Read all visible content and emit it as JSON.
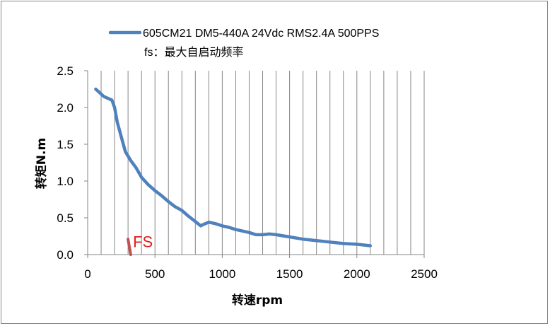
{
  "chart_data": {
    "type": "line",
    "title": "",
    "xlabel": "转速rpm",
    "ylabel": "转矩N.m",
    "xlim": [
      0,
      2500
    ],
    "ylim": [
      0,
      2.5
    ],
    "x_ticks": [
      "0",
      "500",
      "1000",
      "1500",
      "2000",
      "2500"
    ],
    "y_ticks": [
      "0.0",
      "0.5",
      "1.0",
      "1.5",
      "2.0",
      "2.5"
    ],
    "grid": "vertical",
    "legend": "top",
    "series": [
      {
        "name": "605CM21 DM5-440A 24Vdc RMS2.4A 500PPS",
        "color": "#4f81bd",
        "x": [
          60,
          120,
          180,
          200,
          220,
          250,
          280,
          320,
          360,
          400,
          450,
          500,
          550,
          600,
          650,
          700,
          750,
          800,
          840,
          860,
          900,
          950,
          1000,
          1050,
          1100,
          1150,
          1200,
          1250,
          1300,
          1350,
          1400,
          1500,
          1600,
          1700,
          1800,
          1900,
          2000,
          2100
        ],
        "y": [
          2.25,
          2.15,
          2.1,
          2.0,
          1.8,
          1.6,
          1.4,
          1.28,
          1.18,
          1.05,
          0.95,
          0.87,
          0.8,
          0.72,
          0.65,
          0.6,
          0.52,
          0.45,
          0.39,
          0.41,
          0.44,
          0.42,
          0.39,
          0.37,
          0.34,
          0.32,
          0.3,
          0.27,
          0.27,
          0.28,
          0.27,
          0.24,
          0.21,
          0.19,
          0.17,
          0.15,
          0.14,
          0.12
        ]
      },
      {
        "name": "fs：最大自启动频率",
        "color": "#c0504d",
        "x": [
          300,
          320
        ],
        "y": [
          0.21,
          0.0
        ]
      }
    ],
    "annotations": [
      {
        "text": "FS",
        "color": "#e0201b",
        "x": 410,
        "y": 0.17
      }
    ]
  }
}
